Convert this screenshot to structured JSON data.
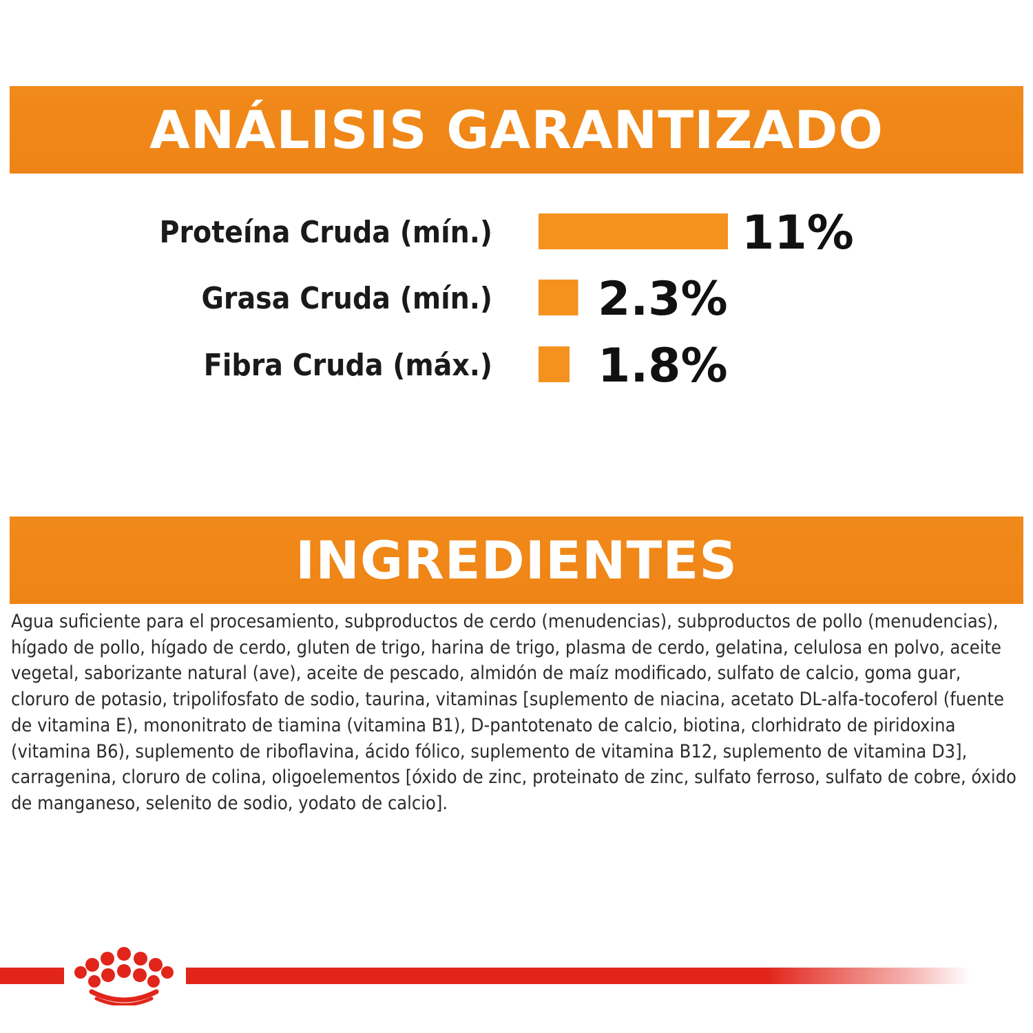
{
  "analysis": {
    "title": "ANÁLISIS GARANTIZADO"
  },
  "chart_data": {
    "type": "bar",
    "orientation": "horizontal",
    "categories": [
      "Proteína Cruda (mín.)",
      "Grasa Cruda (mín.)",
      "Fibra Cruda (máx.)"
    ],
    "values": [
      11,
      2.3,
      1.8
    ],
    "value_labels": [
      "11%",
      "2.3%",
      "1.8%"
    ],
    "unit": "%",
    "title": "ANÁLISIS GARANTIZADO",
    "xlabel": "",
    "ylabel": "",
    "grid": false,
    "legend": "none",
    "bar_color": "#f5911e"
  },
  "ingredients": {
    "title": "INGREDIENTES",
    "text": "Agua suficiente para el procesamiento, subproductos de cerdo (menudencias), subproductos de pollo (menudencias), hígado de pollo, hígado de cerdo, gluten de trigo, harina de trigo, plasma de cerdo, gelatina, celulosa en polvo, aceite vegetal, saborizante natural (ave), aceite de pescado, almidón de maíz modificado, sulfato de calcio, goma guar, cloruro de potasio, tripolifosfato de sodio, taurina, vitaminas [suplemento de niacina, acetato DL-alfa-tocoferol (fuente de vitamina E), mononitrato de tiamina (vitamina B1), D-pantotenato de calcio, biotina, clorhidrato de piridoxina (vitamina B6), suplemento de riboflavina, ácido fólico, suplemento de vitamina B12, suplemento de vitamina D3], carragenina, cloruro de colina, oligoelementos [óxido de zinc, proteinato de zinc, sulfato ferroso, sulfato de cobre, óxido de manganeso, selenito de sodio, yodato de calcio]."
  },
  "colors": {
    "banner": "#f08a1a",
    "bar": "#f5911e",
    "footer_red": "#e1251b",
    "text": "#1a1a1a"
  },
  "footer": {
    "logo_icon": "crown-icon"
  }
}
